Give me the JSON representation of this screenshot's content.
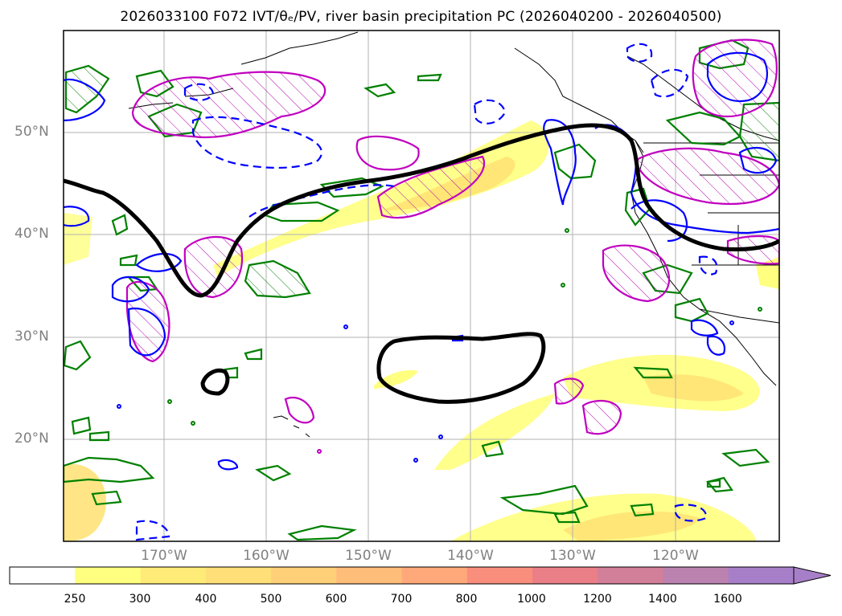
{
  "title": "2026033100 F072 IVT/θₑ/PV, river basin precipitation PC (2026040200 - 2026040500)",
  "map": {
    "lat_labels": [
      "50°N",
      "40°N",
      "30°N",
      "20°N"
    ],
    "lon_labels": [
      "170°W",
      "160°W",
      "150°W",
      "140°W",
      "130°W",
      "120°W"
    ],
    "colors": {
      "theta_e_contour": "#000000",
      "pv_positive": "#0000ff",
      "pv_negative_dashed": "#0000ff",
      "precip_pc_green": "#008000",
      "precip_pc_magenta": "#c000c0",
      "ivt_fill_low": "#ffff80",
      "ivt_fill_mid": "#ffe070",
      "gridline": "#b0b0b0",
      "coastline": "#000000"
    }
  },
  "colorbar": {
    "ticks": [
      "250",
      "300",
      "400",
      "500",
      "600",
      "700",
      "800",
      "1000",
      "1200",
      "1400",
      "1600"
    ],
    "colors": [
      "#ffffff",
      "#ffff80",
      "#ffec78",
      "#ffdf78",
      "#ffd078",
      "#ffbd7a",
      "#ffa97a",
      "#f98e7c",
      "#ea7f88",
      "#d27f99",
      "#bb82b0",
      "#a77fc8"
    ],
    "extend": "max"
  }
}
